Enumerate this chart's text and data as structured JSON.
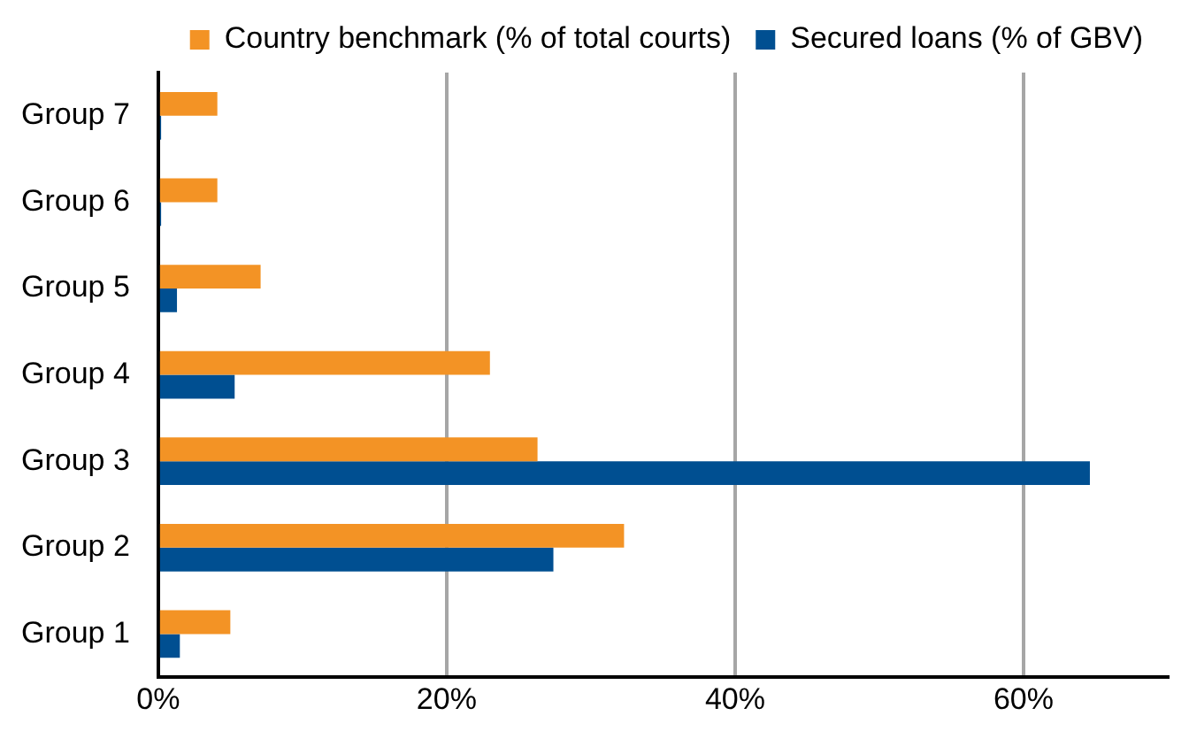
{
  "chart_data": {
    "type": "bar",
    "orientation": "horizontal",
    "categories": [
      "Group 7",
      "Group 6",
      "Group 5",
      "Group 4",
      "Group 3",
      "Group 2",
      "Group 1"
    ],
    "series": [
      {
        "name": "Country benchmark (% of total courts)",
        "color": "#f39325",
        "values": [
          4.1,
          4.1,
          7.1,
          23,
          26.3,
          32.3,
          5
        ]
      },
      {
        "name": "Secured loans (% of GBV)",
        "color": "#004f91",
        "values": [
          0.2,
          0.2,
          1.3,
          5.3,
          64.6,
          27.4,
          1.5
        ]
      }
    ],
    "xlim": [
      0,
      70
    ],
    "xticks": [
      {
        "value": 0,
        "label": "0%"
      },
      {
        "value": 20,
        "label": "20%"
      },
      {
        "value": 40,
        "label": "40%"
      },
      {
        "value": 60,
        "label": "60%"
      }
    ],
    "grid": "x",
    "legend": "top"
  }
}
